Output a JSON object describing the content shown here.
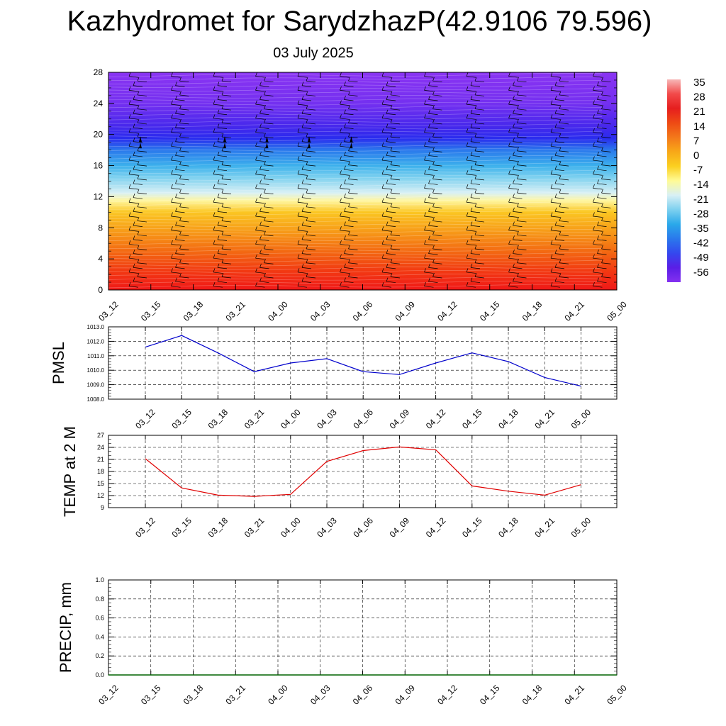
{
  "title": "Kazhydromet for SarydzhazP(42.9106 79.596)",
  "subtitle": "03 July 2025",
  "chart_data": [
    {
      "type": "heatmap",
      "panel": "cross-section",
      "ylim": [
        0,
        28
      ],
      "yticks": [
        0,
        4,
        8,
        12,
        16,
        20,
        24,
        28
      ],
      "x_ticks": [
        "03_12",
        "03_15",
        "03_18",
        "03_21",
        "04_00",
        "04_03",
        "04_06",
        "04_09",
        "04_12",
        "04_15",
        "04_18",
        "04_21",
        "05_00"
      ],
      "colorbar": {
        "labels": [
          "35",
          "28",
          "21",
          "14",
          "7",
          "0",
          "-7",
          "-14",
          "-21",
          "-28",
          "-35",
          "-42",
          "-49",
          "-56"
        ],
        "colors": [
          "#f7b7b7",
          "#f24a4a",
          "#e61e1e",
          "#ee4a14",
          "#f3781a",
          "#f8a818",
          "#fbd020",
          "#fffb96",
          "#d8f0f5",
          "#7cd0ef",
          "#2aa8ea",
          "#2a78ec",
          "#3448ee",
          "#5a1ee6",
          "#8430f0"
        ],
        "color_stops": [
          {
            "level": 0,
            "color": "#f01818"
          },
          {
            "level": 2.5,
            "color": "#f23a12"
          },
          {
            "level": 5,
            "color": "#f36a12"
          },
          {
            "level": 7.5,
            "color": "#f79a18"
          },
          {
            "level": 10,
            "color": "#fbc622"
          },
          {
            "level": 11.5,
            "color": "#fff6a0"
          },
          {
            "level": 12.5,
            "color": "#d8f0f5"
          },
          {
            "level": 14.5,
            "color": "#7cd0ef"
          },
          {
            "level": 16,
            "color": "#3cb0ec"
          },
          {
            "level": 18,
            "color": "#2a78ec"
          },
          {
            "level": 19.5,
            "color": "#2a2cee"
          },
          {
            "level": 21,
            "color": "#4628ec"
          },
          {
            "level": 24,
            "color": "#7430f0"
          },
          {
            "level": 28,
            "color": "#8a34f2"
          }
        ]
      }
    },
    {
      "type": "line",
      "ylabel": "PMSL",
      "ylim": [
        1008.0,
        1013.0
      ],
      "yticks": [
        "1008.0",
        "1009.0",
        "1010.0",
        "1011.0",
        "1012.0",
        "1013.0"
      ],
      "x_ticks": [
        "03_12",
        "03_15",
        "03_18",
        "03_21",
        "04_00",
        "04_03",
        "04_06",
        "04_09",
        "04_12",
        "04_15",
        "04_18",
        "04_21",
        "05_00"
      ],
      "values": [
        1011.6,
        1012.4,
        1011.2,
        1009.9,
        1010.5,
        1010.8,
        1009.9,
        1009.7,
        1010.5,
        1011.2,
        1010.6,
        1009.5,
        1008.9
      ],
      "color": "#0000cc"
    },
    {
      "type": "line",
      "ylabel": "TEMP at 2 M",
      "ylim": [
        9,
        27
      ],
      "yticks": [
        "9",
        "12",
        "15",
        "18",
        "21",
        "24",
        "27"
      ],
      "x_ticks": [
        "03_12",
        "03_15",
        "03_18",
        "03_21",
        "04_00",
        "04_03",
        "04_06",
        "04_09",
        "04_12",
        "04_15",
        "04_18",
        "04_21",
        "05_00"
      ],
      "values": [
        21.2,
        13.9,
        12.1,
        11.8,
        12.3,
        20.5,
        23.2,
        24.1,
        23.4,
        14.4,
        13.1,
        12.1,
        14.7
      ],
      "color": "#e00000"
    },
    {
      "type": "line",
      "ylabel": "PRECIP, mm",
      "ylim": [
        0.0,
        1.0
      ],
      "yticks": [
        "0.0",
        "0.2",
        "0.4",
        "0.6",
        "0.8",
        "1.0"
      ],
      "x_ticks": [
        "03_12",
        "03_15",
        "03_18",
        "03_21",
        "04_00",
        "04_03",
        "04_06",
        "04_09",
        "04_12",
        "04_15",
        "04_18",
        "04_21",
        "05_00"
      ],
      "values": [
        0,
        0,
        0,
        0,
        0,
        0,
        0,
        0,
        0,
        0,
        0,
        0,
        0
      ],
      "color": "#006400"
    }
  ]
}
